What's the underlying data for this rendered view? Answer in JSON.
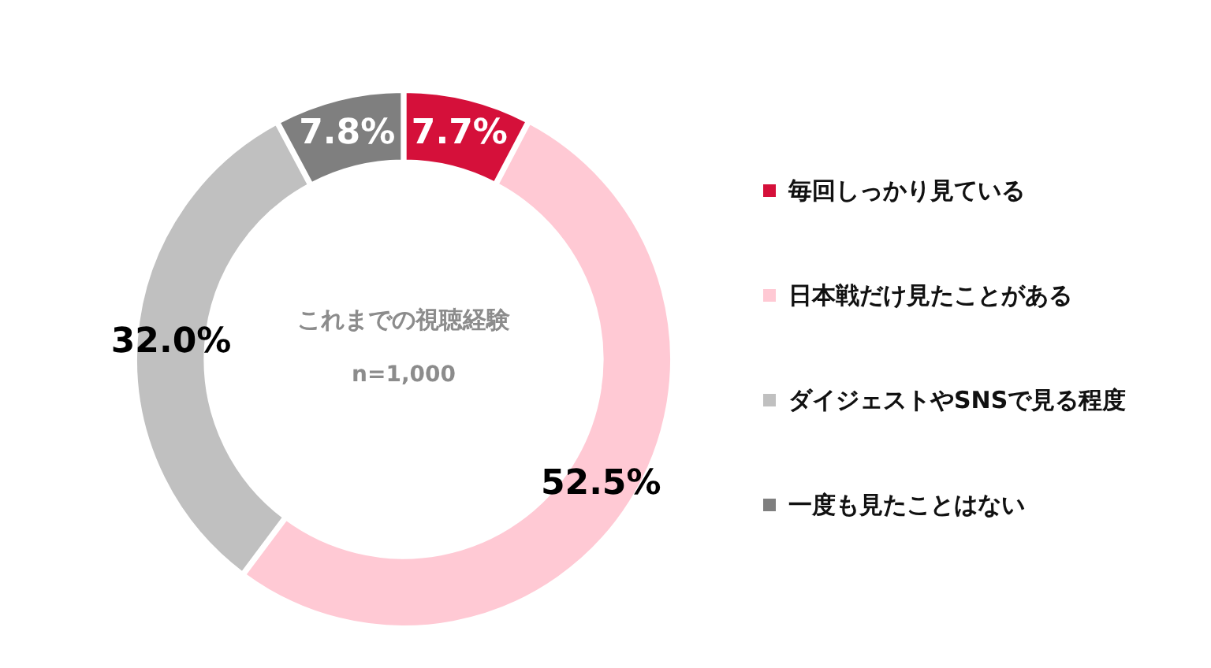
{
  "chart_data": {
    "type": "donut",
    "title": "これまでの視聴経験",
    "subtitle": "n=1,000",
    "categories": [
      "毎回しっかり見ている",
      "日本戦だけ見たことがある",
      "ダイジェストやSNSで見る程度",
      "一度も見たことはない"
    ],
    "values": [
      7.7,
      52.5,
      32.0,
      7.8
    ],
    "value_labels": [
      "7.7%",
      "52.5%",
      "32.0%",
      "7.8%"
    ],
    "colors": [
      "#d5103a",
      "#ffc9d4",
      "#c0c0c0",
      "#7f7f7f"
    ],
    "legend": "right"
  }
}
